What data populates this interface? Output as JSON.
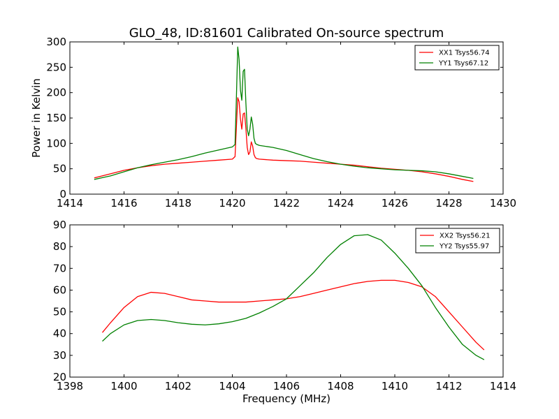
{
  "figure_title": "GLO_48, ID:81601 Calibrated On-source spectrum",
  "chart_data": [
    {
      "type": "line",
      "title": "GLO_48, ID:81601 Calibrated On-source spectrum",
      "xlabel": "",
      "ylabel": "Power in Kelvin",
      "xlim": [
        1414,
        1430
      ],
      "ylim": [
        0,
        300
      ],
      "xticks": [
        1414,
        1416,
        1418,
        1420,
        1422,
        1424,
        1426,
        1428,
        1430
      ],
      "yticks": [
        0,
        50,
        100,
        150,
        200,
        250,
        300
      ],
      "legend_position": "top-right",
      "grid": false,
      "series": [
        {
          "name": "XX1 Tsys56.74",
          "color": "#ff0000",
          "x": [
            1414.9,
            1415.5,
            1416.0,
            1416.5,
            1417.0,
            1417.5,
            1418.0,
            1418.5,
            1419.0,
            1419.5,
            1420.0,
            1420.1,
            1420.2,
            1420.25,
            1420.3,
            1420.35,
            1420.4,
            1420.45,
            1420.5,
            1420.55,
            1420.6,
            1420.65,
            1420.7,
            1420.75,
            1420.8,
            1420.85,
            1420.9,
            1421.0,
            1421.5,
            1422.0,
            1422.5,
            1423.0,
            1423.5,
            1424.0,
            1424.5,
            1425.0,
            1425.5,
            1426.0,
            1426.5,
            1427.0,
            1427.5,
            1428.0,
            1428.5,
            1428.9
          ],
          "y": [
            32,
            40,
            47,
            52,
            56,
            59,
            61,
            63,
            65,
            67,
            69,
            74,
            190,
            182,
            148,
            128,
            158,
            160,
            130,
            92,
            78,
            83,
            103,
            95,
            78,
            72,
            70,
            69,
            67,
            66,
            65,
            63,
            61,
            59,
            57,
            54,
            51,
            49,
            47,
            44,
            40,
            35,
            29,
            25
          ]
        },
        {
          "name": "YY1 Tsys67.12",
          "color": "#008000",
          "x": [
            1414.9,
            1415.5,
            1416.0,
            1416.5,
            1417.0,
            1417.5,
            1418.0,
            1418.5,
            1419.0,
            1419.5,
            1420.0,
            1420.1,
            1420.15,
            1420.2,
            1420.25,
            1420.3,
            1420.35,
            1420.4,
            1420.45,
            1420.5,
            1420.55,
            1420.6,
            1420.65,
            1420.7,
            1420.75,
            1420.8,
            1420.85,
            1420.9,
            1421.0,
            1421.5,
            1422.0,
            1422.5,
            1423.0,
            1423.5,
            1424.0,
            1424.5,
            1425.0,
            1425.5,
            1426.0,
            1426.5,
            1427.0,
            1427.5,
            1428.0,
            1428.5,
            1428.9
          ],
          "y": [
            29,
            36,
            44,
            52,
            58,
            63,
            68,
            74,
            81,
            87,
            93,
            98,
            190,
            290,
            265,
            205,
            185,
            242,
            246,
            180,
            128,
            115,
            128,
            152,
            138,
            110,
            100,
            98,
            96,
            92,
            86,
            78,
            70,
            64,
            59,
            55,
            52,
            50,
            48,
            47,
            46,
            44,
            40,
            35,
            31
          ]
        }
      ]
    },
    {
      "type": "line",
      "title": "",
      "xlabel": "Frequency (MHz)",
      "ylabel": "",
      "xlim": [
        1398,
        1414
      ],
      "ylim": [
        20,
        90
      ],
      "xticks": [
        1398,
        1400,
        1402,
        1404,
        1406,
        1408,
        1410,
        1412,
        1414
      ],
      "yticks": [
        20,
        30,
        40,
        50,
        60,
        70,
        80,
        90
      ],
      "legend_position": "top-right",
      "grid": false,
      "series": [
        {
          "name": "XX2 Tsys56.21",
          "color": "#ff0000",
          "x": [
            1399.2,
            1399.5,
            1400.0,
            1400.5,
            1401.0,
            1401.5,
            1402.0,
            1402.5,
            1403.0,
            1403.5,
            1404.0,
            1404.5,
            1405.0,
            1405.5,
            1406.0,
            1406.5,
            1407.0,
            1407.5,
            1408.0,
            1408.5,
            1409.0,
            1409.5,
            1410.0,
            1410.5,
            1411.0,
            1411.5,
            1412.0,
            1412.5,
            1413.0,
            1413.3
          ],
          "y": [
            40.5,
            45,
            52,
            57,
            59,
            58.5,
            57,
            55.5,
            55,
            54.5,
            54.5,
            54.5,
            55,
            55.5,
            56,
            57,
            58.5,
            60,
            61.5,
            63,
            64,
            64.5,
            64.5,
            63.5,
            61.5,
            57,
            50,
            43,
            36,
            32.5
          ]
        },
        {
          "name": "YY2 Tsys55.97",
          "color": "#008000",
          "x": [
            1399.2,
            1399.5,
            1400.0,
            1400.5,
            1401.0,
            1401.5,
            1402.0,
            1402.5,
            1403.0,
            1403.5,
            1404.0,
            1404.5,
            1405.0,
            1405.5,
            1406.0,
            1406.5,
            1407.0,
            1407.5,
            1408.0,
            1408.5,
            1409.0,
            1409.5,
            1410.0,
            1410.5,
            1411.0,
            1411.5,
            1412.0,
            1412.5,
            1413.0,
            1413.3
          ],
          "y": [
            36.5,
            40,
            44,
            46,
            46.5,
            46,
            45,
            44.3,
            44,
            44.5,
            45.5,
            47,
            49.5,
            52.5,
            56,
            62,
            68,
            75,
            81,
            85,
            85.5,
            83,
            77,
            70,
            62,
            52,
            43,
            35,
            30,
            28
          ]
        }
      ]
    }
  ]
}
